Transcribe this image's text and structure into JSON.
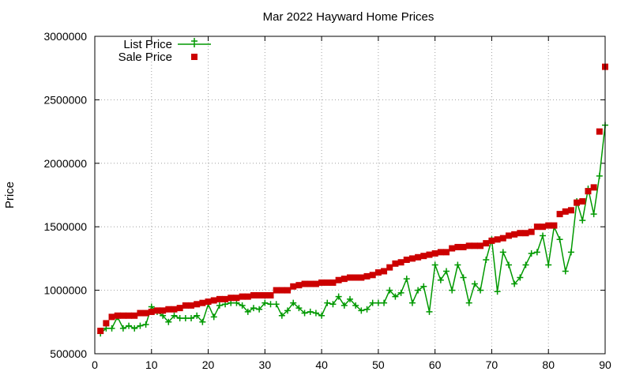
{
  "chart_data": {
    "type": "scatter",
    "title": "Mar 2022 Hayward Home Prices",
    "xlabel": "",
    "ylabel": "Price",
    "xlim": [
      0,
      90
    ],
    "ylim": [
      500000,
      3000000
    ],
    "x_ticks": [
      "0",
      "10",
      "20",
      "30",
      "40",
      "50",
      "60",
      "70",
      "80",
      "90"
    ],
    "y_ticks": [
      "500000",
      "1000000",
      "1500000",
      "2000000",
      "2500000",
      "3000000"
    ],
    "grid": true,
    "legend_position": "top-left",
    "series": [
      {
        "name": "List Price",
        "style": "linespoints",
        "marker": "plus",
        "color": "#009900",
        "x": [
          1,
          2,
          3,
          4,
          5,
          6,
          7,
          8,
          9,
          10,
          11,
          12,
          13,
          14,
          15,
          16,
          17,
          18,
          19,
          20,
          21,
          22,
          23,
          24,
          25,
          26,
          27,
          28,
          29,
          30,
          31,
          32,
          33,
          34,
          35,
          36,
          37,
          38,
          39,
          40,
          41,
          42,
          43,
          44,
          45,
          46,
          47,
          48,
          49,
          50,
          51,
          52,
          53,
          54,
          55,
          56,
          57,
          58,
          59,
          60,
          61,
          62,
          63,
          64,
          65,
          66,
          67,
          68,
          69,
          70,
          71,
          72,
          73,
          74,
          75,
          76,
          77,
          78,
          79,
          80,
          81,
          82,
          83,
          84,
          85,
          86,
          87,
          88,
          89,
          90
        ],
        "y": [
          660000,
          700000,
          700000,
          790000,
          700000,
          720000,
          700000,
          720000,
          730000,
          870000,
          830000,
          800000,
          750000,
          800000,
          780000,
          780000,
          780000,
          800000,
          750000,
          890000,
          790000,
          880000,
          890000,
          900000,
          900000,
          880000,
          830000,
          860000,
          850000,
          900000,
          890000,
          890000,
          800000,
          840000,
          900000,
          860000,
          820000,
          830000,
          820000,
          800000,
          900000,
          890000,
          950000,
          880000,
          930000,
          880000,
          840000,
          850000,
          900000,
          900000,
          900000,
          1000000,
          950000,
          980000,
          1090000,
          900000,
          1000000,
          1030000,
          830000,
          1200000,
          1080000,
          1150000,
          1000000,
          1200000,
          1100000,
          900000,
          1050000,
          1000000,
          1240000,
          1400000,
          990000,
          1300000,
          1200000,
          1050000,
          1100000,
          1200000,
          1290000,
          1300000,
          1430000,
          1200000,
          1500000,
          1400000,
          1150000,
          1300000,
          1700000,
          1550000,
          1800000,
          1600000,
          1900000,
          2300000
        ]
      },
      {
        "name": "Sale Price",
        "style": "points",
        "marker": "square",
        "color": "#cc0000",
        "x": [
          1,
          2,
          3,
          4,
          5,
          6,
          7,
          8,
          9,
          10,
          11,
          12,
          13,
          14,
          15,
          16,
          17,
          18,
          19,
          20,
          21,
          22,
          23,
          24,
          25,
          26,
          27,
          28,
          29,
          30,
          31,
          32,
          33,
          34,
          35,
          36,
          37,
          38,
          39,
          40,
          41,
          42,
          43,
          44,
          45,
          46,
          47,
          48,
          49,
          50,
          51,
          52,
          53,
          54,
          55,
          56,
          57,
          58,
          59,
          60,
          61,
          62,
          63,
          64,
          65,
          66,
          67,
          68,
          69,
          70,
          71,
          72,
          73,
          74,
          75,
          76,
          77,
          78,
          79,
          80,
          81,
          82,
          83,
          84,
          85,
          86,
          87,
          88,
          89,
          90
        ],
        "y": [
          680000,
          740000,
          790000,
          800000,
          800000,
          800000,
          800000,
          820000,
          820000,
          830000,
          840000,
          840000,
          850000,
          850000,
          860000,
          880000,
          880000,
          890000,
          900000,
          910000,
          920000,
          930000,
          930000,
          940000,
          940000,
          950000,
          950000,
          960000,
          960000,
          960000,
          960000,
          1000000,
          1000000,
          1000000,
          1030000,
          1040000,
          1050000,
          1050000,
          1050000,
          1060000,
          1060000,
          1060000,
          1080000,
          1090000,
          1100000,
          1100000,
          1100000,
          1110000,
          1120000,
          1140000,
          1150000,
          1180000,
          1210000,
          1220000,
          1240000,
          1250000,
          1260000,
          1270000,
          1280000,
          1290000,
          1300000,
          1300000,
          1330000,
          1340000,
          1340000,
          1350000,
          1350000,
          1350000,
          1370000,
          1390000,
          1400000,
          1410000,
          1430000,
          1440000,
          1450000,
          1450000,
          1460000,
          1500000,
          1500000,
          1510000,
          1510000,
          1600000,
          1620000,
          1630000,
          1690000,
          1700000,
          1780000,
          1810000,
          2250000,
          2760000
        ]
      }
    ]
  },
  "colors": {
    "list_price": "#009900",
    "sale_price": "#cc0000",
    "grid": "#a0a0a0",
    "axis": "#000000"
  }
}
